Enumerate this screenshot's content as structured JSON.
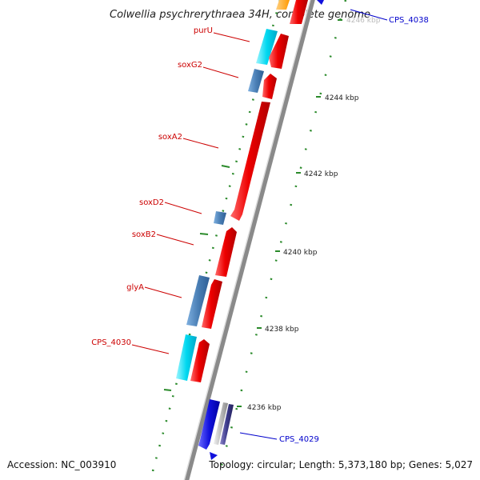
{
  "title": "Colwellia psychrerythraea 34H, complete genome",
  "footer": {
    "accession": "Accession: NC_003910",
    "topology": "Topology: circular; Length: 5,373,180 bp; Genes: 5,027"
  },
  "ticks": [
    {
      "label": "4246 kbp",
      "kbp": 4246
    },
    {
      "label": "4244 kbp",
      "kbp": 4244
    },
    {
      "label": "4242 kbp",
      "kbp": 4242
    },
    {
      "label": "4240 kbp",
      "kbp": 4240
    },
    {
      "label": "4238 kbp",
      "kbp": 4238
    },
    {
      "label": "4236 kbp",
      "kbp": 4236
    }
  ],
  "gene_labels": [
    {
      "text": "purU",
      "color": "#cc0000"
    },
    {
      "text": "soxG2",
      "color": "#cc0000"
    },
    {
      "text": "soxA2",
      "color": "#cc0000"
    },
    {
      "text": "soxD2",
      "color": "#cc0000"
    },
    {
      "text": "soxB2",
      "color": "#cc0000"
    },
    {
      "text": "glyA",
      "color": "#cc0000"
    },
    {
      "text": "CPS_4030",
      "color": "#cc0000"
    },
    {
      "text": "CPS_4038",
      "color": "#0000cc"
    },
    {
      "text": "CPS_4029",
      "color": "#0000cc"
    }
  ],
  "colors": {
    "backbone": "#8a8a8a",
    "cds": "#ee0000",
    "gene_blue": "#4a7fb5",
    "gene_cyan": "#00d8f0",
    "gene_deepblue": "#1111dd",
    "gene_orange": "#ff9900",
    "gc_skew": "#2a8a2a"
  }
}
